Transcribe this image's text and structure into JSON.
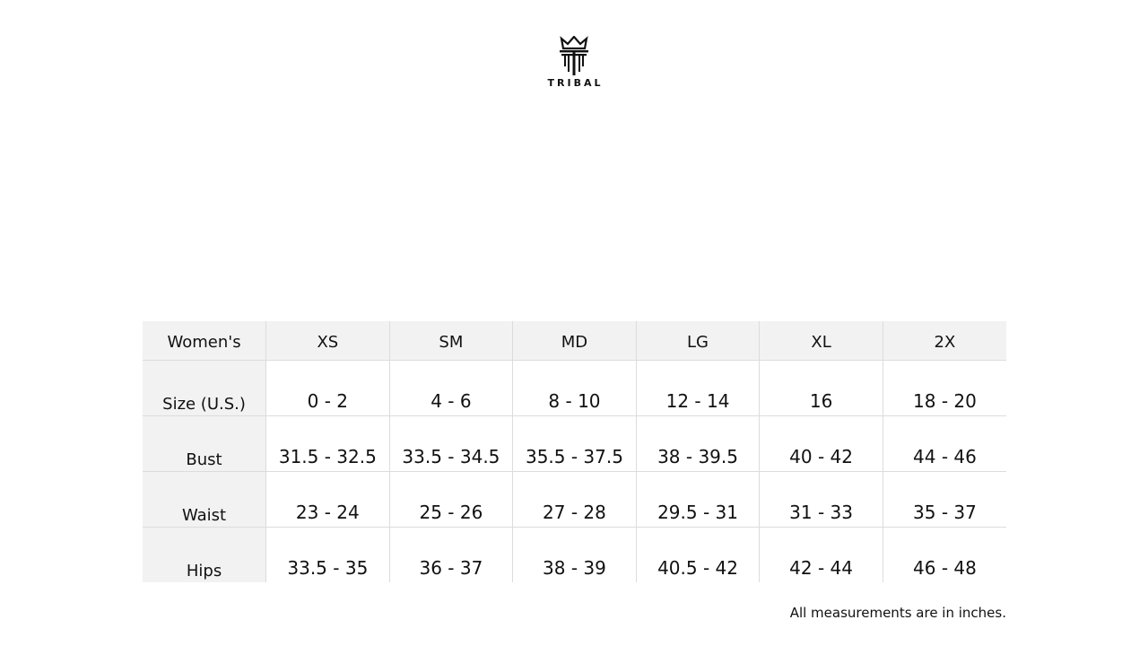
{
  "brand": {
    "name": "TRIBAL"
  },
  "table": {
    "header": [
      "Women's",
      "XS",
      "SM",
      "MD",
      "LG",
      "XL",
      "2X"
    ],
    "rows": [
      {
        "label": "Size (U.S.)",
        "values": [
          "0 - 2",
          "4 - 6",
          "8 - 10",
          "12 - 14",
          "16",
          "18 - 20"
        ]
      },
      {
        "label": "Bust",
        "values": [
          "31.5 - 32.5",
          "33.5 - 34.5",
          "35.5 - 37.5",
          "38 - 39.5",
          "40 - 42",
          "44 - 46"
        ]
      },
      {
        "label": "Waist",
        "values": [
          "23 - 24",
          "25 - 26",
          "27 - 28",
          "29.5 - 31",
          "31 - 33",
          "35 - 37"
        ]
      },
      {
        "label": "Hips",
        "values": [
          "33.5 - 35",
          "36 - 37",
          "38 - 39",
          "40.5 - 42",
          "42 - 44",
          "46 - 48"
        ]
      }
    ]
  },
  "note": "All measurements are in inches."
}
